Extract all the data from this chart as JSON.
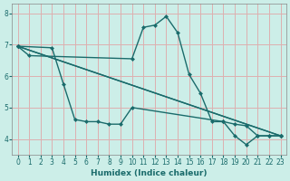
{
  "xlabel": "Humidex (Indice chaleur)",
  "bg_color": "#cceee8",
  "grid_color": "#ddb0b0",
  "line_color": "#1a6b6b",
  "xlim": [
    -0.5,
    23.5
  ],
  "ylim": [
    3.5,
    8.3
  ],
  "xticks": [
    0,
    1,
    2,
    3,
    4,
    5,
    6,
    7,
    8,
    9,
    10,
    11,
    12,
    13,
    14,
    15,
    16,
    17,
    18,
    19,
    20,
    21,
    22,
    23
  ],
  "yticks": [
    4,
    5,
    6,
    7,
    8
  ],
  "line1_x": [
    0,
    1,
    10,
    11,
    12,
    13,
    14,
    15,
    16,
    17,
    18,
    19,
    20,
    21,
    22,
    23
  ],
  "line1_y": [
    6.95,
    6.65,
    6.55,
    7.55,
    7.62,
    7.9,
    7.38,
    6.05,
    5.45,
    4.55,
    4.55,
    4.1,
    3.82,
    4.1,
    4.1,
    4.1
  ],
  "line2_x": [
    0,
    3,
    4,
    5,
    6,
    7,
    8,
    9,
    10,
    18,
    19,
    20,
    21,
    22,
    23
  ],
  "line2_y": [
    6.95,
    6.9,
    5.75,
    4.62,
    4.55,
    4.55,
    4.47,
    4.47,
    5.0,
    4.55,
    4.47,
    4.42,
    4.1,
    4.1,
    4.1
  ],
  "line3_x": [
    0,
    23
  ],
  "line3_y": [
    6.95,
    4.1
  ],
  "line4_x": [
    0,
    23
  ],
  "line4_y": [
    6.95,
    4.1
  ]
}
